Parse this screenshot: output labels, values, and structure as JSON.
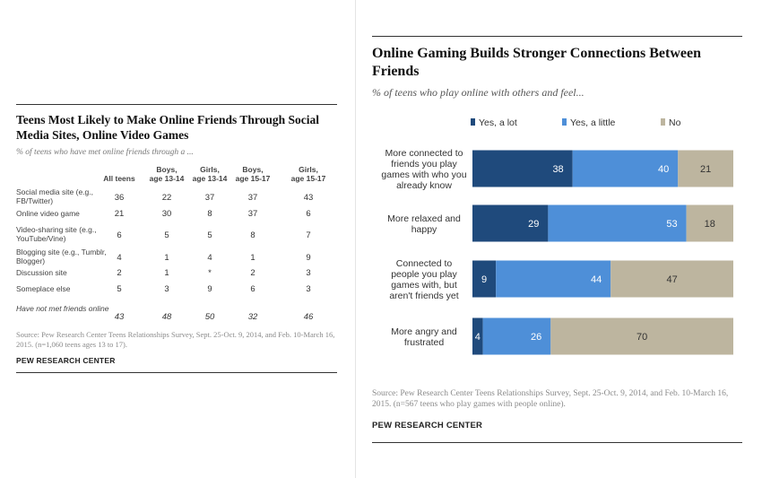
{
  "left": {
    "title": "Teens Most Likely to Make Online Friends Through Social Media Sites, Online Video Games",
    "subtitle": "% of teens who have met online friends through a ...",
    "columns": [
      "All teens",
      "Boys, age 13-14",
      "Girls, age 13-14",
      "Boys, age 15-17",
      "Girls, age 15-17"
    ],
    "rows": [
      {
        "label": "Social media site (e.g., FB/Twitter)",
        "values": [
          "36",
          "22",
          "37",
          "37",
          "43"
        ]
      },
      {
        "label": "Online video game",
        "values": [
          "21",
          "30",
          "8",
          "37",
          "6"
        ]
      },
      {
        "label": "Video-sharing site (e.g., YouTube/Vine)",
        "values": [
          "6",
          "5",
          "5",
          "8",
          "7"
        ]
      },
      {
        "label": "Blogging site (e.g., Tumblr, Blogger)",
        "values": [
          "4",
          "1",
          "4",
          "1",
          "9"
        ]
      },
      {
        "label": "Discussion site",
        "values": [
          "2",
          "1",
          "*",
          "2",
          "3"
        ]
      },
      {
        "label": "Someplace else",
        "values": [
          "5",
          "3",
          "9",
          "6",
          "3"
        ]
      },
      {
        "label": "Have not met friends online",
        "values": [
          "43",
          "48",
          "50",
          "32",
          "46"
        ],
        "italic": true
      }
    ],
    "source": "Source: Pew Research Center Teens Relationships Survey, Sept. 25-Oct. 9, 2014, and Feb. 10-March 16, 2015. (n=1,060 teens ages 13 to 17).",
    "brand": "PEW RESEARCH CENTER"
  },
  "right": {
    "title": "Online Gaming Builds Stronger Connections Between Friends",
    "subtitle": "% of teens who play online with others and feel...",
    "source": "Source: Pew Research Center Teens Relationships Survey, Sept. 25-Oct. 9, 2014, and Feb. 10-March 16, 2015. (n=567 teens who play games with people online).",
    "brand": "PEW RESEARCH CENTER"
  },
  "chart_data": [
    {
      "type": "bar",
      "orientation": "horizontal",
      "stacked": true,
      "title": "Online Gaming Builds Stronger Connections Between Friends",
      "subtitle": "% of teens who play online with others and feel...",
      "legend_position": "top",
      "categories": [
        "More connected to friends you play games with who you already know",
        "More relaxed and happy",
        "Connected to people you play games with, but aren't friends yet",
        "More angry and frustrated"
      ],
      "series": [
        {
          "name": "Yes, a lot",
          "color": "#1f4a7c",
          "values": [
            38,
            29,
            9,
            4
          ]
        },
        {
          "name": "Yes, a little",
          "color": "#4e8fd8",
          "values": [
            40,
            53,
            44,
            26
          ]
        },
        {
          "name": "No",
          "color": "#bdb59f",
          "values": [
            21,
            18,
            47,
            70
          ]
        }
      ]
    },
    {
      "type": "table",
      "title": "Teens Most Likely to Make Online Friends Through Social Media Sites, Online Video Games",
      "subtitle": "% of teens who have met online friends through a ...",
      "columns": [
        "All teens",
        "Boys, age 13-14",
        "Girls, age 13-14",
        "Boys, age 15-17",
        "Girls, age 15-17"
      ],
      "rows": [
        [
          "Social media site (e.g., FB/Twitter)",
          "36",
          "22",
          "37",
          "37",
          "43"
        ],
        [
          "Online video game",
          "21",
          "30",
          "8",
          "37",
          "6"
        ],
        [
          "Video-sharing site (e.g., YouTube/Vine)",
          "6",
          "5",
          "5",
          "8",
          "7"
        ],
        [
          "Blogging site (e.g., Tumblr, Blogger)",
          "4",
          "1",
          "4",
          "1",
          "9"
        ],
        [
          "Discussion site",
          "2",
          "1",
          "*",
          "2",
          "3"
        ],
        [
          "Someplace else",
          "5",
          "3",
          "9",
          "6",
          "3"
        ],
        [
          "Have not met friends online",
          "43",
          "48",
          "50",
          "32",
          "46"
        ]
      ]
    }
  ]
}
